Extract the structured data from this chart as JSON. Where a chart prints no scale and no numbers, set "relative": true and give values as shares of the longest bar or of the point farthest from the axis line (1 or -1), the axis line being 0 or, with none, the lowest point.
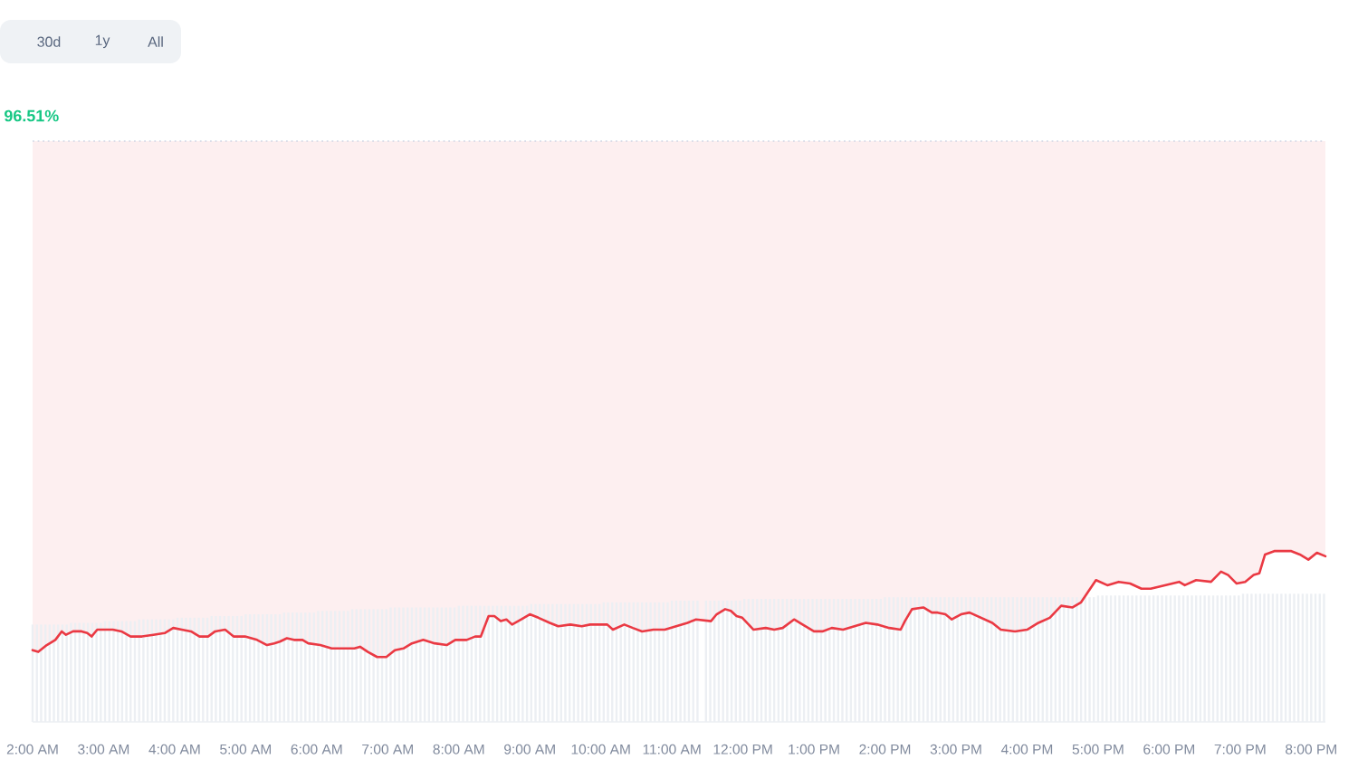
{
  "chart_data": {
    "type": "line",
    "relative": true,
    "subtitle": "96.51%",
    "xlim": [
      2.0,
      20.2
    ],
    "xticks": [
      {
        "value": 2,
        "label": "2:00 AM"
      },
      {
        "value": 3,
        "label": "3:00 AM"
      },
      {
        "value": 4,
        "label": "4:00 AM"
      },
      {
        "value": 5,
        "label": "5:00 AM"
      },
      {
        "value": 6,
        "label": "6:00 AM"
      },
      {
        "value": 7,
        "label": "7:00 AM"
      },
      {
        "value": 8,
        "label": "8:00 AM"
      },
      {
        "value": 9,
        "label": "9:00 AM"
      },
      {
        "value": 10,
        "label": "10:00 AM"
      },
      {
        "value": 11,
        "label": "11:00 AM"
      },
      {
        "value": 12,
        "label": "12:00 PM"
      },
      {
        "value": 13,
        "label": "1:00 PM"
      },
      {
        "value": 14,
        "label": "2:00 PM"
      },
      {
        "value": 15,
        "label": "3:00 PM"
      },
      {
        "value": 16,
        "label": "4:00 PM"
      },
      {
        "value": 17,
        "label": "5:00 PM"
      },
      {
        "value": 18,
        "label": "6:00 PM"
      },
      {
        "value": 19,
        "label": "7:00 PM"
      },
      {
        "value": 20,
        "label": "8:00 PM"
      }
    ],
    "series": [
      {
        "color": "#ea3943",
        "x": [
          2.0,
          2.08,
          2.2,
          2.32,
          2.41,
          2.47,
          2.57,
          2.69,
          2.77,
          2.83,
          2.91,
          3.01,
          3.13,
          3.25,
          3.38,
          3.54,
          3.7,
          3.86,
          3.98,
          4.1,
          4.23,
          4.35,
          4.47,
          4.57,
          4.71,
          4.83,
          4.99,
          5.16,
          5.3,
          5.4,
          5.48,
          5.58,
          5.68,
          5.8,
          5.88,
          6.05,
          6.21,
          6.41,
          6.53,
          6.61,
          6.72,
          6.85,
          6.98,
          7.1,
          7.22,
          7.34,
          7.5,
          7.66,
          7.83,
          7.95,
          8.11,
          8.23,
          8.31,
          8.42,
          8.5,
          8.59,
          8.67,
          8.75,
          8.88,
          9.0,
          9.12,
          9.28,
          9.4,
          9.57,
          9.73,
          9.85,
          9.97,
          10.09,
          10.17,
          10.33,
          10.45,
          10.58,
          10.74,
          10.9,
          11.06,
          11.22,
          11.34,
          11.55,
          11.63,
          11.75,
          11.83,
          11.91,
          11.99,
          12.15,
          12.32,
          12.44,
          12.56,
          12.72,
          12.84,
          13.0,
          13.12,
          13.25,
          13.41,
          13.57,
          13.73,
          13.89,
          14.06,
          14.22,
          14.28,
          14.38,
          14.54,
          14.66,
          14.74,
          14.85,
          14.94,
          15.07,
          15.19,
          15.35,
          15.51,
          15.63,
          15.83,
          16.0,
          16.16,
          16.32,
          16.48,
          16.64,
          16.76,
          16.97,
          17.13,
          17.29,
          17.45,
          17.61,
          17.74,
          17.94,
          18.14,
          18.22,
          18.38,
          18.59,
          18.73,
          18.83,
          18.95,
          19.07,
          19.19,
          19.27,
          19.35,
          19.48,
          19.72,
          19.84,
          19.96,
          20.08,
          20.2
        ],
        "values": [
          0.42,
          0.41,
          0.45,
          0.48,
          0.53,
          0.51,
          0.53,
          0.53,
          0.52,
          0.5,
          0.54,
          0.54,
          0.54,
          0.53,
          0.5,
          0.5,
          0.51,
          0.52,
          0.55,
          0.54,
          0.53,
          0.5,
          0.5,
          0.53,
          0.54,
          0.5,
          0.5,
          0.48,
          0.45,
          0.46,
          0.47,
          0.49,
          0.48,
          0.48,
          0.46,
          0.45,
          0.43,
          0.43,
          0.43,
          0.44,
          0.41,
          0.38,
          0.38,
          0.42,
          0.43,
          0.46,
          0.48,
          0.46,
          0.45,
          0.48,
          0.48,
          0.5,
          0.5,
          0.62,
          0.62,
          0.59,
          0.6,
          0.57,
          0.6,
          0.63,
          0.61,
          0.58,
          0.56,
          0.57,
          0.56,
          0.57,
          0.57,
          0.57,
          0.54,
          0.57,
          0.55,
          0.53,
          0.54,
          0.54,
          0.56,
          0.58,
          0.6,
          0.59,
          0.63,
          0.66,
          0.65,
          0.62,
          0.61,
          0.54,
          0.55,
          0.54,
          0.55,
          0.6,
          0.57,
          0.53,
          0.53,
          0.55,
          0.54,
          0.56,
          0.58,
          0.57,
          0.55,
          0.54,
          0.59,
          0.66,
          0.67,
          0.64,
          0.64,
          0.63,
          0.6,
          0.63,
          0.64,
          0.61,
          0.58,
          0.54,
          0.53,
          0.54,
          0.58,
          0.61,
          0.68,
          0.67,
          0.7,
          0.83,
          0.8,
          0.82,
          0.81,
          0.78,
          0.78,
          0.8,
          0.82,
          0.8,
          0.83,
          0.82,
          0.88,
          0.86,
          0.81,
          0.82,
          0.86,
          0.87,
          0.98,
          1.0,
          1.0,
          0.98,
          0.95,
          0.99,
          0.97
        ],
        "lower": [
          0.42,
          0.41,
          0.45,
          0.48,
          0.53,
          0.51,
          0.53,
          0.53,
          0.52,
          0.5,
          0.54,
          0.54,
          0.54,
          0.53,
          0.5,
          0.5,
          0.51,
          0.52,
          0.55,
          0.54,
          0.53,
          0.5,
          0.5,
          0.53,
          0.54,
          0.5,
          0.5,
          0.48,
          0.45,
          0.46,
          0.47,
          0.49,
          0.48,
          0.48,
          0.46,
          0.45,
          0.43,
          0.43,
          0.43,
          0.44,
          0.41,
          0.38,
          0.38,
          0.42,
          0.43,
          0.46,
          0.48,
          0.46,
          0.45,
          0.48,
          0.48,
          0.5,
          0.5,
          0.62,
          0.62,
          0.59,
          0.6,
          0.57,
          0.6,
          0.63,
          0.61,
          0.58,
          0.56,
          0.57,
          0.56,
          0.57,
          0.57,
          0.57,
          0.54,
          0.57,
          0.55,
          0.53,
          0.54,
          0.54,
          0.56,
          0.58,
          0.6,
          0.59,
          0.63,
          0.66,
          0.65,
          0.62,
          0.61,
          0.54,
          0.55,
          0.54,
          0.55,
          0.6,
          0.57,
          0.53,
          0.53,
          0.55,
          0.54,
          0.56,
          0.58,
          0.57,
          0.55,
          0.54,
          0.59,
          0.66,
          0.67,
          0.64,
          0.64,
          0.63,
          0.6,
          0.63,
          0.64,
          0.61,
          0.58,
          0.54,
          0.53,
          0.54,
          0.58,
          0.61,
          0.68,
          0.67,
          0.7,
          0.83,
          0.8,
          0.82,
          0.81,
          0.78,
          0.78,
          0.8,
          0.82,
          0.8,
          0.83,
          0.82,
          0.88,
          0.86,
          0.81,
          0.82,
          0.86,
          0.87,
          0.98,
          1.0,
          1.0,
          0.98,
          0.95,
          0.99,
          0.97
        ],
        "upper": [
          3.4,
          3.4,
          3.4,
          3.4,
          3.4,
          3.4,
          3.4,
          3.4,
          3.4,
          3.4,
          3.4,
          3.4,
          3.4,
          3.4,
          3.4,
          3.4,
          3.4,
          3.4,
          3.4,
          3.4,
          3.4,
          3.4,
          3.4,
          3.4,
          3.4,
          3.4,
          3.4,
          3.4,
          3.4,
          3.4,
          3.4,
          3.4,
          3.4,
          3.4,
          3.4,
          3.4,
          3.4,
          3.4,
          3.4,
          3.4,
          3.4,
          3.4,
          3.4,
          3.4,
          3.4,
          3.4,
          3.4,
          3.4,
          3.4,
          3.4,
          3.4,
          3.4,
          3.4,
          3.4,
          3.4,
          3.4,
          3.4,
          3.4,
          3.4,
          3.4,
          3.4,
          3.4,
          3.4,
          3.4,
          3.4,
          3.4,
          3.4,
          3.4,
          3.4,
          3.4,
          3.4,
          3.4,
          3.4,
          3.4,
          3.4,
          3.4,
          3.4,
          3.4,
          3.4,
          3.4,
          3.4,
          3.4,
          3.4,
          3.4,
          3.4,
          3.4,
          3.4,
          3.4,
          3.4,
          3.4,
          3.4,
          3.4,
          3.4,
          3.4,
          3.4,
          3.4,
          3.4,
          3.4,
          3.4,
          3.4,
          3.4,
          3.4,
          3.4,
          3.4,
          3.4,
          3.4,
          3.4,
          3.4,
          3.4,
          3.4,
          3.4,
          3.4,
          3.4,
          3.4,
          3.4,
          3.4,
          3.4,
          3.4,
          3.4,
          3.4,
          3.4,
          3.4,
          3.4,
          3.4,
          3.4,
          3.4,
          3.4,
          3.4,
          3.4,
          3.4,
          3.4,
          3.4,
          3.4,
          3.4,
          3.4,
          3.4,
          3.4,
          3.4,
          3.4,
          3.4,
          3.4
        ]
      },
      {
        "type": "bar",
        "color": "#eceff3",
        "x": [
          2.0,
          2.06,
          2.12,
          2.18,
          2.24,
          2.3,
          2.36,
          2.42,
          2.48,
          2.54,
          2.6,
          2.66,
          2.72,
          2.78,
          2.84,
          2.9,
          2.96,
          3.02,
          3.08,
          3.14,
          3.2,
          3.26,
          3.32,
          3.38,
          3.44,
          3.5,
          3.56,
          3.62,
          3.68,
          3.74,
          3.8,
          3.86,
          3.92,
          3.98,
          4.04,
          4.1,
          4.16,
          4.22,
          4.28,
          4.34,
          4.4,
          4.46,
          4.52,
          4.58,
          4.64,
          4.7,
          4.76,
          4.82,
          4.88,
          4.94,
          5.0,
          5.06,
          5.12,
          5.18,
          5.24,
          5.3,
          5.36,
          5.42,
          5.48,
          5.54,
          5.6,
          5.66,
          5.72,
          5.78,
          5.84,
          5.9,
          5.96,
          6.02,
          6.08,
          6.14,
          6.2,
          6.26,
          6.32,
          6.38,
          6.44,
          6.5,
          6.56,
          6.62,
          6.68,
          6.74,
          6.8,
          6.86,
          6.92,
          6.98,
          7.04,
          7.1,
          7.16,
          7.22,
          7.28,
          7.34,
          7.4,
          7.46,
          7.52,
          7.58,
          7.64,
          7.7,
          7.76,
          7.82,
          7.88,
          7.94,
          8.0,
          8.06,
          8.12,
          8.18,
          8.24,
          8.3,
          8.36,
          8.42,
          8.48,
          8.54,
          8.6,
          8.66,
          8.72,
          8.78,
          8.84,
          8.9,
          8.96,
          9.02,
          9.08,
          9.14,
          9.2,
          9.26,
          9.32,
          9.38,
          9.44,
          9.5,
          9.56,
          9.62,
          9.68,
          9.74,
          9.8,
          9.86,
          9.92,
          9.98,
          10.04,
          10.1,
          10.16,
          10.22,
          10.28,
          10.34,
          10.4,
          10.46,
          10.52,
          10.58,
          10.64,
          10.7,
          10.76,
          10.82,
          10.88,
          10.94,
          11.0,
          11.06,
          11.12,
          11.18,
          11.24,
          11.3,
          11.36,
          11.42,
          11.48,
          11.54,
          11.6,
          11.66,
          11.72,
          11.78,
          11.84,
          11.9,
          11.96,
          12.02,
          12.08,
          12.14,
          12.2,
          12.26,
          12.32,
          12.38,
          12.44,
          12.5,
          12.56,
          12.62,
          12.68,
          12.74,
          12.8,
          12.86,
          12.92,
          12.98,
          13.04,
          13.1,
          13.16,
          13.22,
          13.28,
          13.34,
          13.4,
          13.46,
          13.52,
          13.58,
          13.64,
          13.7,
          13.76,
          13.82,
          13.88,
          13.94,
          14.0,
          14.06,
          14.12,
          14.18,
          14.24,
          14.3,
          14.36,
          14.42,
          14.48,
          14.54,
          14.6,
          14.66,
          14.72,
          14.78,
          14.84,
          14.9,
          14.96,
          15.02,
          15.08,
          15.14,
          15.2,
          15.26,
          15.32,
          15.38,
          15.44,
          15.5,
          15.56,
          15.62,
          15.68,
          15.74,
          15.8,
          15.86,
          15.92,
          15.98,
          16.04,
          16.1,
          16.16,
          16.22,
          16.28,
          16.34,
          16.4,
          16.46,
          16.52,
          16.58,
          16.64,
          16.7,
          16.76,
          16.82,
          16.88,
          16.94,
          17.0,
          17.06,
          17.12,
          17.18,
          17.24,
          17.3,
          17.36,
          17.42,
          17.48,
          17.54,
          17.6,
          17.66,
          17.72,
          17.78,
          17.84,
          17.9,
          17.96,
          18.02,
          18.08,
          18.14,
          18.2,
          18.26,
          18.32,
          18.38,
          18.44,
          18.5,
          18.56,
          18.62,
          18.68,
          18.74,
          18.8,
          18.86,
          18.92,
          18.98,
          19.04,
          19.1,
          19.16,
          19.22,
          19.28,
          19.34,
          19.4,
          19.46,
          19.52,
          19.58,
          19.64,
          19.7,
          19.76,
          19.82,
          19.88,
          19.94,
          20.0,
          20.06,
          20.12,
          20.18
        ],
        "values": [
          0.57,
          0.57,
          0.57,
          0.57,
          0.57,
          0.57,
          0.57,
          0.57,
          0.57,
          0.58,
          0.58,
          0.58,
          0.58,
          0.58,
          0.58,
          0.58,
          0.58,
          0.59,
          0.59,
          0.59,
          0.59,
          0.59,
          0.59,
          0.59,
          0.59,
          0.6,
          0.6,
          0.6,
          0.6,
          0.6,
          0.6,
          0.6,
          0.6,
          0.6,
          0.61,
          0.61,
          0.61,
          0.61,
          0.61,
          0.61,
          0.61,
          0.61,
          0.62,
          0.62,
          0.62,
          0.62,
          0.62,
          0.62,
          0.62,
          0.62,
          0.63,
          0.63,
          0.63,
          0.63,
          0.63,
          0.63,
          0.63,
          0.63,
          0.63,
          0.64,
          0.64,
          0.64,
          0.64,
          0.64,
          0.64,
          0.64,
          0.64,
          0.65,
          0.65,
          0.65,
          0.65,
          0.65,
          0.65,
          0.65,
          0.65,
          0.66,
          0.66,
          0.66,
          0.66,
          0.66,
          0.66,
          0.66,
          0.66,
          0.66,
          0.67,
          0.67,
          0.67,
          0.67,
          0.67,
          0.67,
          0.67,
          0.67,
          0.67,
          0.67,
          0.67,
          0.67,
          0.67,
          0.67,
          0.67,
          0.67,
          0.68,
          0.68,
          0.68,
          0.68,
          0.68,
          0.68,
          0.68,
          0.68,
          0.68,
          0.68,
          0.68,
          0.68,
          0.68,
          0.68,
          0.68,
          0.68,
          0.68,
          0.69,
          0.69,
          0.69,
          0.69,
          0.69,
          0.69,
          0.69,
          0.69,
          0.69,
          0.69,
          0.69,
          0.69,
          0.69,
          0.69,
          0.69,
          0.69,
          0.69,
          0.7,
          0.7,
          0.7,
          0.7,
          0.7,
          0.7,
          0.7,
          0.7,
          0.7,
          0.7,
          0.7,
          0.7,
          0.7,
          0.7,
          0.7,
          0.7,
          0.71,
          0.71,
          0.71,
          0.71,
          0.71,
          0.71,
          0.71,
          null,
          0.71,
          0.71,
          0.71,
          0.71,
          0.71,
          0.71,
          0.71,
          0.71,
          0.71,
          0.72,
          0.72,
          0.72,
          0.72,
          0.72,
          0.72,
          0.72,
          0.72,
          0.72,
          0.72,
          0.72,
          0.72,
          0.72,
          0.72,
          0.72,
          0.72,
          0.72,
          0.72,
          0.72,
          0.72,
          0.72,
          0.72,
          0.72,
          0.72,
          0.72,
          0.72,
          0.72,
          0.72,
          0.72,
          0.72,
          0.72,
          0.72,
          0.72,
          0.73,
          0.73,
          0.73,
          0.73,
          0.73,
          0.73,
          0.73,
          0.73,
          0.73,
          0.73,
          0.73,
          0.73,
          0.73,
          0.73,
          0.73,
          0.73,
          0.73,
          0.73,
          0.73,
          0.73,
          0.73,
          0.73,
          0.73,
          0.73,
          0.73,
          0.73,
          0.73,
          0.73,
          0.73,
          0.73,
          0.73,
          0.73,
          0.73,
          0.73,
          0.73,
          0.73,
          0.73,
          0.73,
          0.73,
          0.73,
          0.73,
          0.73,
          0.73,
          0.73,
          0.73,
          0.73,
          0.73,
          0.73,
          0.73,
          0.73,
          0.74,
          0.74,
          0.74,
          0.74,
          0.74,
          0.74,
          0.74,
          0.74,
          0.74,
          0.74,
          0.74,
          0.74,
          0.74,
          0.74,
          0.74,
          0.74,
          0.74,
          0.74,
          0.74,
          0.74,
          0.74,
          0.74,
          0.74,
          0.74,
          0.74,
          0.74,
          0.74,
          0.74,
          0.74,
          0.74,
          0.74,
          0.74,
          0.74,
          0.74,
          0.75,
          0.75,
          0.75,
          0.75,
          0.75,
          0.75,
          0.75,
          0.75,
          0.75,
          0.75,
          0.75,
          0.75,
          0.75,
          0.75,
          0.75,
          0.75,
          0.75,
          0.75,
          0.75,
          0.75
        ]
      }
    ],
    "ref_lines": [
      {
        "axis": "y",
        "value": 3.4,
        "color": "#cfd6e4",
        "line_style": "dotted"
      }
    ],
    "annotations": [
      "30d",
      "1y",
      "All"
    ]
  }
}
